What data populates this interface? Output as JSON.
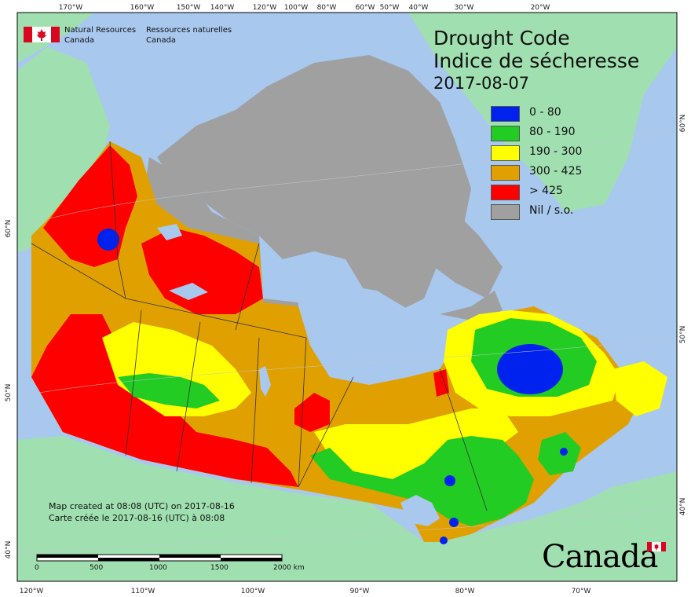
{
  "title": {
    "line1": "Drought Code",
    "line2": "Indice de sécheresse",
    "date": "2017-08-07"
  },
  "legend": [
    {
      "label": "0 - 80",
      "color": "#0022ee"
    },
    {
      "label": "80 - 190",
      "color": "#22cc22"
    },
    {
      "label": "190 - 300",
      "color": "#ffff00"
    },
    {
      "label": "300 - 425",
      "color": "#e0a000"
    },
    {
      "label": "> 425",
      "color": "#ff0000"
    },
    {
      "label": "Nil / s.o.",
      "color": "#a0a0a0"
    }
  ],
  "agency": {
    "en_line1": "Natural Resources",
    "en_line2": "Canada",
    "fr_line1": "Ressources naturelles",
    "fr_line2": "Canada"
  },
  "created": {
    "en": "Map created at 08:08 (UTC) on 2017-08-16",
    "fr": "Carte créée le 2017-08-16 (UTC) à 08:08"
  },
  "scale_bar": {
    "labels": [
      "0",
      "500",
      "1000",
      "1500",
      "2000  km"
    ]
  },
  "wordmark": "Canada",
  "graticule": {
    "top": [
      "170°W",
      "160°W",
      "150°W",
      "140°W",
      "120°W",
      "100°W",
      "80°W",
      "60°W",
      "50°W",
      "40°W",
      "30°W",
      "20°W"
    ],
    "bottom": [
      "120°W",
      "110°W",
      "100°W",
      "90°W",
      "80°W",
      "70°W"
    ],
    "left": [
      "60°N",
      "50°N",
      "40°N"
    ],
    "right": [
      "60°N",
      "50°N",
      "40°N"
    ]
  },
  "colors": {
    "ocean": "#a8c8ee",
    "land_outside": "#a0e0b0",
    "nodata": "#a0a0a0"
  }
}
